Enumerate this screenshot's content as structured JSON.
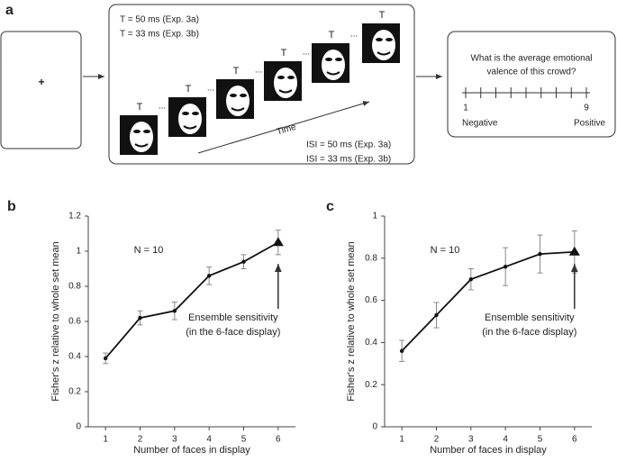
{
  "panel_a": {
    "label": "a",
    "fixation": "+",
    "timing": [
      "T = 50 ms (Exp. 3a)",
      "T = 33 ms (Exp. 3b)"
    ],
    "face_labels": [
      "T",
      "T",
      "T",
      "T",
      "T",
      "T"
    ],
    "ellipses": [
      "...",
      "...",
      "...",
      "...",
      "..."
    ],
    "time_label": "Time",
    "isi": [
      "ISI = 50 ms (Exp. 3a)",
      "ISI = 33 ms (Exp. 3b)"
    ],
    "question": [
      "What is the average emotional",
      "valence of this crowd?"
    ],
    "scale_min": "1",
    "scale_max": "9",
    "scale_min_label": "Negative",
    "scale_max_label": "Positive"
  },
  "chart_data": [
    {
      "type": "line",
      "panel_label": "b",
      "x_label": "Number of faces in display",
      "y_label": "Fisher's z relative to whole set mean",
      "x": [
        1,
        2,
        3,
        4,
        5,
        6
      ],
      "values": [
        0.39,
        0.62,
        0.66,
        0.86,
        0.94,
        1.05
      ],
      "errors": [
        0.03,
        0.04,
        0.05,
        0.05,
        0.04,
        0.07
      ],
      "xlim": [
        0.5,
        6.5
      ],
      "xticks": [
        1,
        2,
        3,
        4,
        5,
        6
      ],
      "ylim": [
        0,
        1.2
      ],
      "yticks": [
        0,
        0.2,
        0.4,
        0.6,
        0.8,
        1,
        1.2
      ],
      "color": "#111111",
      "last_marker": "triangle",
      "annotation": "N = 10",
      "callout": [
        "Ensemble sensitivity",
        "(in the 6-face display)"
      ]
    },
    {
      "type": "line",
      "panel_label": "c",
      "x_label": "Number of faces in display",
      "y_label": "Fisher's z relative to whole set mean",
      "x": [
        1,
        2,
        3,
        4,
        5,
        6
      ],
      "values": [
        0.36,
        0.53,
        0.7,
        0.76,
        0.82,
        0.83
      ],
      "errors": [
        0.05,
        0.06,
        0.05,
        0.09,
        0.09,
        0.1
      ],
      "xlim": [
        0.5,
        6.5
      ],
      "xticks": [
        1,
        2,
        3,
        4,
        5,
        6
      ],
      "ylim": [
        0,
        1
      ],
      "yticks": [
        0,
        0.2,
        0.4,
        0.6,
        0.8,
        1
      ],
      "color": "#111111",
      "last_marker": "triangle",
      "annotation": "N = 10",
      "callout": [
        "Ensemble sensitivity",
        "(in the 6-face display)"
      ]
    }
  ]
}
